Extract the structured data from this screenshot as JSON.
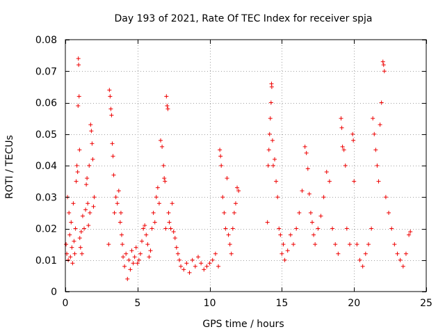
{
  "chart_data": {
    "type": "scatter",
    "title": "Day 193 of 2021, Rate Of TEC Index for receiver spja",
    "xlabel": "GPS time / hours",
    "ylabel": "ROTI / TECUs",
    "xlim": [
      0,
      25
    ],
    "ylim": [
      0,
      0.08
    ],
    "xticks": [
      0,
      5,
      10,
      15,
      20,
      25
    ],
    "xtick_labels": [
      "0",
      "5",
      "10",
      "15",
      "20",
      "25"
    ],
    "yticks": [
      0,
      0.01,
      0.02,
      0.03,
      0.04,
      0.05,
      0.06,
      0.07,
      0.08
    ],
    "ytick_labels": [
      "0",
      "0.01",
      "0.02",
      "0.03",
      "0.04",
      "0.05",
      "0.06",
      "0.07",
      "0.08"
    ],
    "grid": true,
    "marker": "+",
    "marker_color": "#ee0000",
    "series": [
      {
        "name": "ROTI",
        "points": [
          [
            0.05,
            0.015
          ],
          [
            0.1,
            0.012
          ],
          [
            0.15,
            0.03
          ],
          [
            0.2,
            0.01
          ],
          [
            0.25,
            0.025
          ],
          [
            0.3,
            0.018
          ],
          [
            0.35,
            0.011
          ],
          [
            0.4,
            0.022
          ],
          [
            0.45,
            0.014
          ],
          [
            0.5,
            0.009
          ],
          [
            0.55,
            0.028
          ],
          [
            0.6,
            0.016
          ],
          [
            0.65,
            0.012
          ],
          [
            0.7,
            0.02
          ],
          [
            0.75,
            0.035
          ],
          [
            0.8,
            0.04
          ],
          [
            0.85,
            0.038
          ],
          [
            0.88,
            0.059
          ],
          [
            0.9,
            0.074
          ],
          [
            0.92,
            0.072
          ],
          [
            0.95,
            0.062
          ],
          [
            0.98,
            0.045
          ],
          [
            1.0,
            0.017
          ],
          [
            1.05,
            0.014
          ],
          [
            1.1,
            0.019
          ],
          [
            1.15,
            0.012
          ],
          [
            1.2,
            0.024
          ],
          [
            1.3,
            0.02
          ],
          [
            1.4,
            0.026
          ],
          [
            1.45,
            0.034
          ],
          [
            1.5,
            0.036
          ],
          [
            1.55,
            0.028
          ],
          [
            1.6,
            0.021
          ],
          [
            1.65,
            0.04
          ],
          [
            1.7,
            0.025
          ],
          [
            1.75,
            0.053
          ],
          [
            1.8,
            0.051
          ],
          [
            1.85,
            0.047
          ],
          [
            1.9,
            0.042
          ],
          [
            1.95,
            0.027
          ],
          [
            2.0,
            0.03
          ],
          [
            3.0,
            0.015
          ],
          [
            3.05,
            0.064
          ],
          [
            3.1,
            0.062
          ],
          [
            3.15,
            0.058
          ],
          [
            3.2,
            0.056
          ],
          [
            3.25,
            0.047
          ],
          [
            3.3,
            0.043
          ],
          [
            3.35,
            0.037
          ],
          [
            3.4,
            0.025
          ],
          [
            3.5,
            0.03
          ],
          [
            3.6,
            0.028
          ],
          [
            3.7,
            0.032
          ],
          [
            3.8,
            0.022
          ],
          [
            3.85,
            0.025
          ],
          [
            3.9,
            0.018
          ],
          [
            3.95,
            0.015
          ],
          [
            4.0,
            0.011
          ],
          [
            4.1,
            0.008
          ],
          [
            4.2,
            0.012
          ],
          [
            4.3,
            0.004
          ],
          [
            4.4,
            0.01
          ],
          [
            4.5,
            0.007
          ],
          [
            4.6,
            0.013
          ],
          [
            4.7,
            0.009
          ],
          [
            4.8,
            0.011
          ],
          [
            4.9,
            0.014
          ],
          [
            5.0,
            0.009
          ],
          [
            5.1,
            0.01
          ],
          [
            5.2,
            0.012
          ],
          [
            5.3,
            0.016
          ],
          [
            5.4,
            0.02
          ],
          [
            5.5,
            0.021
          ],
          [
            5.6,
            0.018
          ],
          [
            5.7,
            0.015
          ],
          [
            5.8,
            0.011
          ],
          [
            5.9,
            0.013
          ],
          [
            6.0,
            0.02
          ],
          [
            6.1,
            0.025
          ],
          [
            6.2,
            0.022
          ],
          [
            6.3,
            0.03
          ],
          [
            6.4,
            0.033
          ],
          [
            6.5,
            0.028
          ],
          [
            6.6,
            0.048
          ],
          [
            6.7,
            0.046
          ],
          [
            6.8,
            0.04
          ],
          [
            6.85,
            0.036
          ],
          [
            6.9,
            0.035
          ],
          [
            6.95,
            0.02
          ],
          [
            7.0,
            0.062
          ],
          [
            7.05,
            0.059
          ],
          [
            7.1,
            0.058
          ],
          [
            7.15,
            0.025
          ],
          [
            7.2,
            0.022
          ],
          [
            7.3,
            0.02
          ],
          [
            7.4,
            0.028
          ],
          [
            7.5,
            0.019
          ],
          [
            7.6,
            0.017
          ],
          [
            7.7,
            0.014
          ],
          [
            7.8,
            0.012
          ],
          [
            7.9,
            0.01
          ],
          [
            8.0,
            0.008
          ],
          [
            8.2,
            0.007
          ],
          [
            8.4,
            0.009
          ],
          [
            8.6,
            0.006
          ],
          [
            8.8,
            0.01
          ],
          [
            9.0,
            0.008
          ],
          [
            9.2,
            0.011
          ],
          [
            9.4,
            0.009
          ],
          [
            9.6,
            0.007
          ],
          [
            9.8,
            0.008
          ],
          [
            10.0,
            0.009
          ],
          [
            10.2,
            0.01
          ],
          [
            10.4,
            0.012
          ],
          [
            10.6,
            0.008
          ],
          [
            10.7,
            0.045
          ],
          [
            10.75,
            0.043
          ],
          [
            10.8,
            0.04
          ],
          [
            10.9,
            0.03
          ],
          [
            11.0,
            0.025
          ],
          [
            11.1,
            0.02
          ],
          [
            11.2,
            0.036
          ],
          [
            11.3,
            0.018
          ],
          [
            11.4,
            0.015
          ],
          [
            11.5,
            0.012
          ],
          [
            11.6,
            0.02
          ],
          [
            11.7,
            0.025
          ],
          [
            11.8,
            0.028
          ],
          [
            11.9,
            0.033
          ],
          [
            12.0,
            0.032
          ],
          [
            14.0,
            0.022
          ],
          [
            14.05,
            0.04
          ],
          [
            14.1,
            0.045
          ],
          [
            14.15,
            0.05
          ],
          [
            14.2,
            0.055
          ],
          [
            14.25,
            0.06
          ],
          [
            14.28,
            0.066
          ],
          [
            14.3,
            0.065
          ],
          [
            14.35,
            0.048
          ],
          [
            14.4,
            0.04
          ],
          [
            14.5,
            0.042
          ],
          [
            14.6,
            0.035
          ],
          [
            14.7,
            0.03
          ],
          [
            14.8,
            0.02
          ],
          [
            14.9,
            0.018
          ],
          [
            15.0,
            0.012
          ],
          [
            15.1,
            0.015
          ],
          [
            15.2,
            0.01
          ],
          [
            15.4,
            0.013
          ],
          [
            15.6,
            0.018
          ],
          [
            15.8,
            0.015
          ],
          [
            16.0,
            0.02
          ],
          [
            16.2,
            0.025
          ],
          [
            16.4,
            0.032
          ],
          [
            16.6,
            0.046
          ],
          [
            16.7,
            0.044
          ],
          [
            16.8,
            0.039
          ],
          [
            16.9,
            0.031
          ],
          [
            17.0,
            0.025
          ],
          [
            17.1,
            0.022
          ],
          [
            17.2,
            0.018
          ],
          [
            17.3,
            0.015
          ],
          [
            17.5,
            0.02
          ],
          [
            17.7,
            0.024
          ],
          [
            17.9,
            0.03
          ],
          [
            18.1,
            0.038
          ],
          [
            18.3,
            0.035
          ],
          [
            18.5,
            0.02
          ],
          [
            18.7,
            0.015
          ],
          [
            18.9,
            0.012
          ],
          [
            19.1,
            0.055
          ],
          [
            19.15,
            0.052
          ],
          [
            19.2,
            0.046
          ],
          [
            19.3,
            0.045
          ],
          [
            19.4,
            0.04
          ],
          [
            19.5,
            0.02
          ],
          [
            19.7,
            0.015
          ],
          [
            19.9,
            0.05
          ],
          [
            19.95,
            0.048
          ],
          [
            20.0,
            0.035
          ],
          [
            20.2,
            0.015
          ],
          [
            20.4,
            0.01
          ],
          [
            20.6,
            0.008
          ],
          [
            20.8,
            0.012
          ],
          [
            21.0,
            0.015
          ],
          [
            21.2,
            0.02
          ],
          [
            21.3,
            0.055
          ],
          [
            21.4,
            0.05
          ],
          [
            21.5,
            0.045
          ],
          [
            21.6,
            0.04
          ],
          [
            21.7,
            0.035
          ],
          [
            21.8,
            0.053
          ],
          [
            21.9,
            0.06
          ],
          [
            22.0,
            0.073
          ],
          [
            22.05,
            0.072
          ],
          [
            22.1,
            0.07
          ],
          [
            22.2,
            0.03
          ],
          [
            22.4,
            0.025
          ],
          [
            22.6,
            0.02
          ],
          [
            22.8,
            0.015
          ],
          [
            23.0,
            0.012
          ],
          [
            23.2,
            0.01
          ],
          [
            23.4,
            0.008
          ],
          [
            23.6,
            0.012
          ],
          [
            23.8,
            0.018
          ],
          [
            23.9,
            0.019
          ]
        ]
      }
    ]
  }
}
